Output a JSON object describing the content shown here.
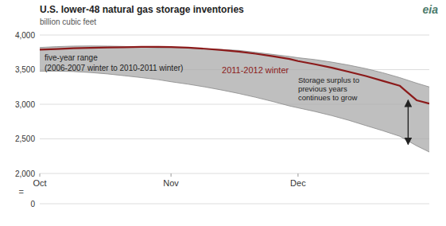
{
  "chart_data": {
    "type": "line",
    "title": "U.S. lower-48 natural gas storage inventories",
    "ylabel": "billion cubic feet",
    "logo": "eia",
    "x": [
      0,
      4,
      8,
      12,
      16,
      20,
      24,
      28,
      31,
      35,
      39,
      43,
      47,
      51,
      55,
      59,
      61,
      65,
      69,
      73,
      77,
      81,
      85,
      89,
      92
    ],
    "xlim": [
      0,
      92
    ],
    "xticks": [
      {
        "value": 0,
        "label": "Oct"
      },
      {
        "value": 31,
        "label": "Nov"
      },
      {
        "value": 61,
        "label": "Dec"
      }
    ],
    "ylim": [
      2000,
      4000
    ],
    "yticks": [
      {
        "value": 2000,
        "label": "2,000"
      },
      {
        "value": 2500,
        "label": "2,500"
      },
      {
        "value": 3000,
        "label": "3,000"
      },
      {
        "value": 3500,
        "label": "3,500"
      },
      {
        "value": 4000,
        "label": "4,000"
      }
    ],
    "grid": true,
    "series": [
      {
        "name": "five-year range",
        "type": "area",
        "color": "#aaaaaa",
        "note": "(2006-2007 winter to 2010-2011 winter)",
        "upper": [
          3820,
          3832,
          3840,
          3842,
          3840,
          3835,
          3825,
          3815,
          3820,
          3812,
          3802,
          3790,
          3778,
          3750,
          3720,
          3690,
          3672,
          3645,
          3608,
          3565,
          3515,
          3455,
          3385,
          3305,
          3250
        ],
        "lower": [
          3478,
          3478,
          3472,
          3458,
          3438,
          3412,
          3385,
          3355,
          3325,
          3290,
          3250,
          3205,
          3155,
          3100,
          3040,
          2975,
          2948,
          2895,
          2835,
          2768,
          2692,
          2618,
          2538,
          2400,
          2310
        ]
      },
      {
        "name": "2011-2012 winter",
        "type": "line",
        "color": "#8b1a1a",
        "values": [
          3788,
          3798,
          3808,
          3814,
          3820,
          3824,
          3828,
          3830,
          3826,
          3818,
          3802,
          3782,
          3760,
          3730,
          3694,
          3654,
          3624,
          3578,
          3528,
          3468,
          3408,
          3338,
          3268,
          3058,
          3010
        ]
      }
    ],
    "annotation": "Storage surplus to\nprevious years\ncontinues to grow",
    "arrow": {
      "x": 87,
      "y": [
        2420,
        3060
      ]
    },
    "axis_break": {
      "yticks": [
        0
      ],
      "symbol": "="
    }
  }
}
